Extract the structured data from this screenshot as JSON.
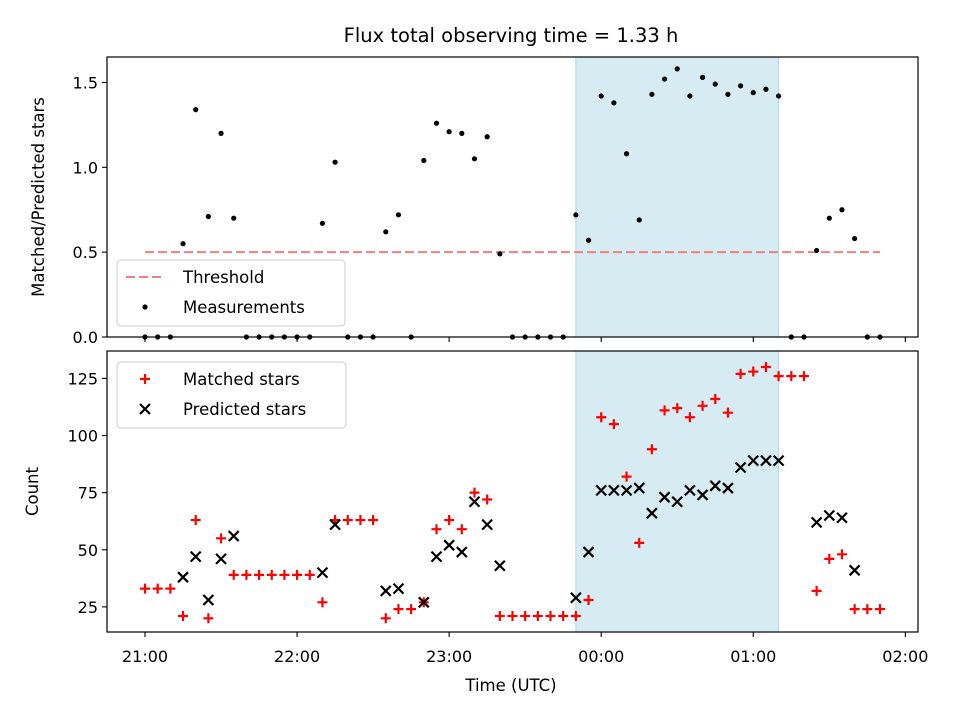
{
  "figure": {
    "title": "Flux total observing time = 1.33 h",
    "xlabel": "Time (UTC)"
  },
  "colors": {
    "threshold": "#f08080",
    "measurements": "#000000",
    "matched": "#ff0000",
    "predicted": "#000000",
    "highlight": "#add8e6"
  },
  "chart_data": [
    {
      "type": "scatter",
      "ylabel": "Matched/Predicted stars",
      "xlim": [
        "20:45",
        "02:05"
      ],
      "ylim": [
        0,
        1.65
      ],
      "xticks": [
        "21:00",
        "22:00",
        "23:00",
        "00:00",
        "01:00",
        "02:00"
      ],
      "yticks": [
        0.0,
        0.5,
        1.0,
        1.5
      ],
      "ytick_labels": [
        "0.0",
        "0.5",
        "1.0",
        "1.5"
      ],
      "highlight_span": [
        "23:50",
        "01:10"
      ],
      "legend_position": "lower-left",
      "series": [
        {
          "name": "Threshold",
          "kind": "dashed-line",
          "x": [
            "21:00",
            "01:50"
          ],
          "y": [
            0.5,
            0.5
          ]
        },
        {
          "name": "Measurements",
          "kind": "dots",
          "points": [
            [
              "21:00",
              0
            ],
            [
              "21:05",
              0
            ],
            [
              "21:10",
              0
            ],
            [
              "21:15",
              0.55
            ],
            [
              "21:20",
              1.34
            ],
            [
              "21:25",
              0.71
            ],
            [
              "21:30",
              1.2
            ],
            [
              "21:35",
              0.7
            ],
            [
              "21:40",
              0
            ],
            [
              "21:45",
              0
            ],
            [
              "21:50",
              0
            ],
            [
              "21:55",
              0
            ],
            [
              "22:00",
              0
            ],
            [
              "22:05",
              0
            ],
            [
              "22:10",
              0.67
            ],
            [
              "22:15",
              1.03
            ],
            [
              "22:20",
              0
            ],
            [
              "22:25",
              0
            ],
            [
              "22:30",
              0
            ],
            [
              "22:35",
              0.62
            ],
            [
              "22:40",
              0.72
            ],
            [
              "22:45",
              0
            ],
            [
              "22:50",
              1.04
            ],
            [
              "22:55",
              1.26
            ],
            [
              "23:00",
              1.21
            ],
            [
              "23:05",
              1.2
            ],
            [
              "23:10",
              1.05
            ],
            [
              "23:15",
              1.18
            ],
            [
              "23:20",
              0.49
            ],
            [
              "23:25",
              0
            ],
            [
              "23:30",
              0
            ],
            [
              "23:35",
              0
            ],
            [
              "23:40",
              0
            ],
            [
              "23:45",
              0
            ],
            [
              "23:50",
              0.72
            ],
            [
              "23:55",
              0.57
            ],
            [
              "00:00",
              1.42
            ],
            [
              "00:05",
              1.38
            ],
            [
              "00:10",
              1.08
            ],
            [
              "00:15",
              0.69
            ],
            [
              "00:20",
              1.43
            ],
            [
              "00:25",
              1.52
            ],
            [
              "00:30",
              1.58
            ],
            [
              "00:35",
              1.42
            ],
            [
              "00:40",
              1.53
            ],
            [
              "00:45",
              1.49
            ],
            [
              "00:50",
              1.43
            ],
            [
              "00:55",
              1.48
            ],
            [
              "01:00",
              1.44
            ],
            [
              "01:05",
              1.46
            ],
            [
              "01:10",
              1.42
            ],
            [
              "01:15",
              0
            ],
            [
              "01:20",
              0
            ],
            [
              "01:25",
              0.51
            ],
            [
              "01:30",
              0.7
            ],
            [
              "01:35",
              0.75
            ],
            [
              "01:40",
              0.58
            ],
            [
              "01:45",
              0
            ],
            [
              "01:50",
              0
            ]
          ]
        }
      ]
    },
    {
      "type": "scatter",
      "ylabel": "Count",
      "xlim": [
        "20:45",
        "02:05"
      ],
      "ylim": [
        14,
        137
      ],
      "xticks": [
        "21:00",
        "22:00",
        "23:00",
        "00:00",
        "01:00",
        "02:00"
      ],
      "yticks": [
        25,
        50,
        75,
        100,
        125
      ],
      "ytick_labels": [
        "25",
        "50",
        "75",
        "100",
        "125"
      ],
      "highlight_span": [
        "23:50",
        "01:10"
      ],
      "legend_position": "upper-left",
      "series": [
        {
          "name": "Matched stars",
          "marker": "plus",
          "points": [
            [
              "21:00",
              33
            ],
            [
              "21:05",
              33
            ],
            [
              "21:10",
              33
            ],
            [
              "21:15",
              21
            ],
            [
              "21:20",
              63
            ],
            [
              "21:25",
              20
            ],
            [
              "21:30",
              55
            ],
            [
              "21:35",
              39
            ],
            [
              "21:40",
              39
            ],
            [
              "21:45",
              39
            ],
            [
              "21:50",
              39
            ],
            [
              "21:55",
              39
            ],
            [
              "22:00",
              39
            ],
            [
              "22:05",
              39
            ],
            [
              "22:10",
              27
            ],
            [
              "22:15",
              63
            ],
            [
              "22:20",
              63
            ],
            [
              "22:25",
              63
            ],
            [
              "22:30",
              63
            ],
            [
              "22:35",
              20
            ],
            [
              "22:40",
              24
            ],
            [
              "22:45",
              24
            ],
            [
              "22:50",
              27
            ],
            [
              "22:55",
              59
            ],
            [
              "23:00",
              63
            ],
            [
              "23:05",
              59
            ],
            [
              "23:10",
              75
            ],
            [
              "23:15",
              72
            ],
            [
              "23:20",
              21
            ],
            [
              "23:25",
              21
            ],
            [
              "23:30",
              21
            ],
            [
              "23:35",
              21
            ],
            [
              "23:40",
              21
            ],
            [
              "23:45",
              21
            ],
            [
              "23:50",
              21
            ],
            [
              "23:55",
              28
            ],
            [
              "00:00",
              108
            ],
            [
              "00:05",
              105
            ],
            [
              "00:10",
              82
            ],
            [
              "00:15",
              53
            ],
            [
              "00:20",
              94
            ],
            [
              "00:25",
              111
            ],
            [
              "00:30",
              112
            ],
            [
              "00:35",
              108
            ],
            [
              "00:40",
              113
            ],
            [
              "00:45",
              116
            ],
            [
              "00:50",
              110
            ],
            [
              "00:55",
              127
            ],
            [
              "01:00",
              128
            ],
            [
              "01:05",
              130
            ],
            [
              "01:10",
              126
            ],
            [
              "01:15",
              126
            ],
            [
              "01:20",
              126
            ],
            [
              "01:25",
              32
            ],
            [
              "01:30",
              46
            ],
            [
              "01:35",
              48
            ],
            [
              "01:40",
              24
            ],
            [
              "01:45",
              24
            ],
            [
              "01:50",
              24
            ]
          ]
        },
        {
          "name": "Predicted stars",
          "marker": "x",
          "points": [
            [
              "21:15",
              38
            ],
            [
              "21:20",
              47
            ],
            [
              "21:25",
              28
            ],
            [
              "21:30",
              46
            ],
            [
              "21:35",
              56
            ],
            [
              "22:10",
              40
            ],
            [
              "22:15",
              61
            ],
            [
              "22:35",
              32
            ],
            [
              "22:40",
              33
            ],
            [
              "22:50",
              27
            ],
            [
              "22:55",
              47
            ],
            [
              "23:00",
              52
            ],
            [
              "23:05",
              49
            ],
            [
              "23:10",
              71
            ],
            [
              "23:15",
              61
            ],
            [
              "23:20",
              43
            ],
            [
              "23:50",
              29
            ],
            [
              "23:55",
              49
            ],
            [
              "00:00",
              76
            ],
            [
              "00:05",
              76
            ],
            [
              "00:10",
              76
            ],
            [
              "00:15",
              77
            ],
            [
              "00:20",
              66
            ],
            [
              "00:25",
              73
            ],
            [
              "00:30",
              71
            ],
            [
              "00:35",
              76
            ],
            [
              "00:40",
              74
            ],
            [
              "00:45",
              78
            ],
            [
              "00:50",
              77
            ],
            [
              "00:55",
              86
            ],
            [
              "01:00",
              89
            ],
            [
              "01:05",
              89
            ],
            [
              "01:10",
              89
            ],
            [
              "01:25",
              62
            ],
            [
              "01:30",
              65
            ],
            [
              "01:35",
              64
            ],
            [
              "01:40",
              41
            ]
          ]
        }
      ]
    }
  ]
}
